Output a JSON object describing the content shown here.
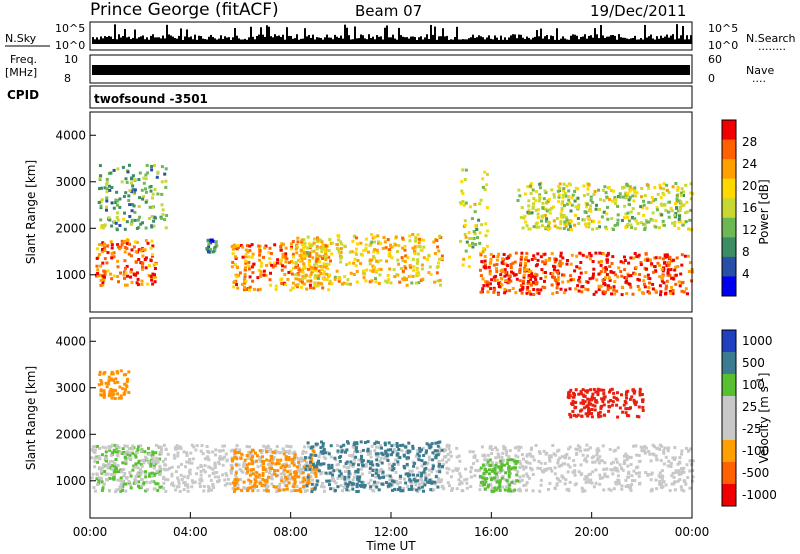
{
  "header": {
    "station": "Prince George (fitACF)",
    "beam": "Beam 07",
    "date": "19/Dec/2011"
  },
  "strip_panels": {
    "nsky": {
      "left_label": "N.Sky",
      "ticks": [
        "10^5",
        "10^0"
      ],
      "right_ticks": [
        "10^5",
        "10^0"
      ],
      "right_label": "N.Search",
      "right_dots": "........"
    },
    "freq": {
      "left_label_1": "Freq.",
      "left_label_2": "[MHz]",
      "ticks": [
        "10",
        "8"
      ],
      "right_ticks": [
        "60",
        "0"
      ],
      "right_label": "Nave",
      "right_dots": "...."
    },
    "cpid": {
      "label": "CPID",
      "value": "twofsound -3501"
    }
  },
  "chart_data": [
    {
      "type": "heatmap",
      "panel": "power",
      "ylabel": "Slant Range [km]",
      "yticks": [
        "4000",
        "3000",
        "2000",
        "1000"
      ],
      "ylim": [
        200,
        4500
      ],
      "xlim": [
        0,
        24
      ],
      "colorbar": {
        "label": "Power [dB]",
        "ticks": [
          "28",
          "24",
          "20",
          "16",
          "12",
          "8",
          "4"
        ],
        "colors": [
          "#f00000",
          "#ff6000",
          "#ffa000",
          "#ffd800",
          "#c8d830",
          "#6cb854",
          "#3c8c64",
          "#2850a8",
          "#0000f0"
        ]
      },
      "echo_regions": [
        {
          "t0": 0.2,
          "t1": 2.6,
          "r0": 800,
          "r1": 1800,
          "level": 24
        },
        {
          "t0": 0.3,
          "t1": 3.0,
          "r0": 2000,
          "r1": 3400,
          "level": 10
        },
        {
          "t0": 4.6,
          "t1": 5.0,
          "r0": 1500,
          "r1": 1800,
          "level": 6
        },
        {
          "t0": 5.6,
          "t1": 9.5,
          "r0": 700,
          "r1": 1700,
          "level": 22
        },
        {
          "t0": 8.0,
          "t1": 14.0,
          "r0": 800,
          "r1": 1900,
          "level": 18
        },
        {
          "t0": 14.7,
          "t1": 15.8,
          "r0": 1200,
          "r1": 3300,
          "level": 14
        },
        {
          "t0": 15.5,
          "t1": 24.0,
          "r0": 600,
          "r1": 1500,
          "level": 26
        },
        {
          "t0": 17.0,
          "t1": 24.0,
          "r0": 2000,
          "r1": 3000,
          "level": 14
        }
      ]
    },
    {
      "type": "heatmap",
      "panel": "velocity",
      "ylabel": "Slant Range [km]",
      "yticks": [
        "4000",
        "3000",
        "2000",
        "1000"
      ],
      "ylim": [
        200,
        4500
      ],
      "xlim": [
        0,
        24
      ],
      "xlabel": "Time UT",
      "xticks": [
        "00:00",
        "04:00",
        "08:00",
        "12:00",
        "16:00",
        "20:00",
        "00:00"
      ],
      "colorbar": {
        "label": "Velocity [m s",
        "label_sup": "-1",
        "label_close": "]",
        "ticks": [
          "1000",
          "500",
          "100",
          "25",
          "-25",
          "-100",
          "-500",
          "-1000"
        ],
        "colors": [
          "#2040c0",
          "#3c7c90",
          "#58c030",
          "#c8c8c8",
          "#c8c8c8",
          "#ffa000",
          "#ff6000",
          "#f00000"
        ]
      },
      "echo_regions": [
        {
          "t0": 0.2,
          "t1": 2.8,
          "r0": 800,
          "r1": 1800,
          "vel": "green"
        },
        {
          "t0": 0.0,
          "t1": 24.0,
          "r0": 800,
          "r1": 1800,
          "vel": "gray"
        },
        {
          "t0": 0.3,
          "t1": 1.5,
          "r0": 2800,
          "r1": 3400,
          "vel": "orange"
        },
        {
          "t0": 5.6,
          "t1": 9.0,
          "r0": 800,
          "r1": 1700,
          "vel": "orange"
        },
        {
          "t0": 8.5,
          "t1": 14.0,
          "r0": 800,
          "r1": 1900,
          "vel": "teal"
        },
        {
          "t0": 15.5,
          "t1": 17.0,
          "r0": 800,
          "r1": 1500,
          "vel": "green"
        },
        {
          "t0": 19.0,
          "t1": 22.0,
          "r0": 2400,
          "r1": 3000,
          "vel": "red"
        }
      ]
    }
  ]
}
